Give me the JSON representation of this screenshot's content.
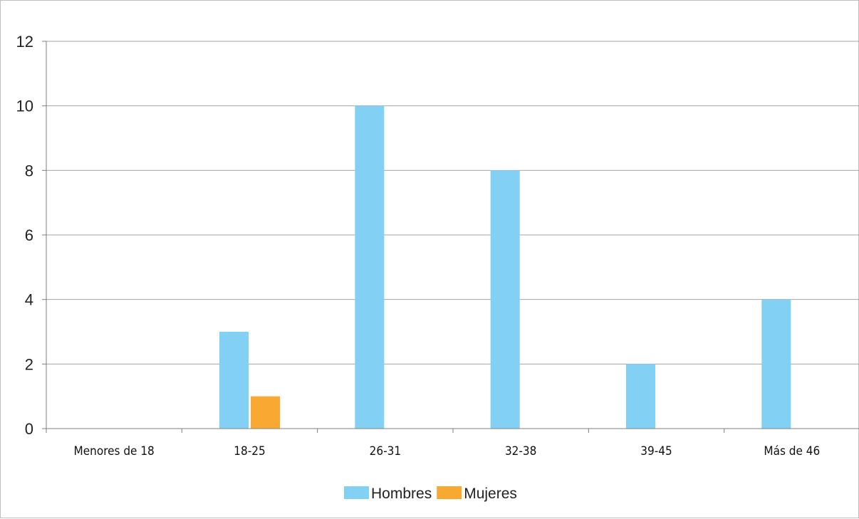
{
  "chart_data": {
    "type": "bar",
    "title": "",
    "xlabel": "",
    "ylabel": "",
    "categories": [
      "Menores de 18",
      "18-25",
      "26-31",
      "32-38",
      "39-45",
      "Más de 46"
    ],
    "series": [
      {
        "name": "Hombres",
        "values": [
          0,
          3,
          10,
          8,
          2,
          4
        ],
        "color": "#82d0f4"
      },
      {
        "name": "Mujeres",
        "values": [
          0,
          1,
          0,
          0,
          0,
          0
        ],
        "color": "#f9a832"
      }
    ],
    "ylim": [
      0,
      12
    ],
    "yticks": [
      0,
      2,
      4,
      6,
      8,
      10,
      12
    ],
    "grid": true,
    "legend_position": "bottom-center"
  }
}
